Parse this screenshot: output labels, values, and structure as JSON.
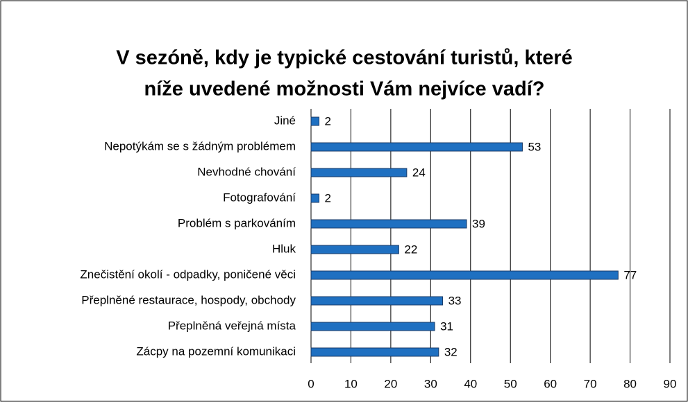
{
  "chart_data": {
    "type": "barh",
    "title": [
      "V sezóně, kdy je typické cestování turistů, které",
      "níže uvedené možnosti Vám nejvíce vadí?"
    ],
    "categories": [
      "Jiné",
      "Nepotýkám se s žádným problémem",
      "Nevhodné chování",
      "Fotografování",
      "Problém s parkováním",
      "Hluk",
      "Znečistění okolí - odpadky, poničené věci",
      "Přeplněné restaurace, hospody, obchody",
      "Přeplněná veřejná místa",
      "Zácpy na pozemní komunikaci"
    ],
    "values": [
      2,
      53,
      24,
      2,
      39,
      22,
      77,
      33,
      31,
      32
    ],
    "color": "#1f70c1",
    "xlim": [
      0,
      90
    ],
    "xticks": [
      0,
      10,
      20,
      30,
      40,
      50,
      60,
      70,
      80,
      90
    ],
    "grid": true
  }
}
